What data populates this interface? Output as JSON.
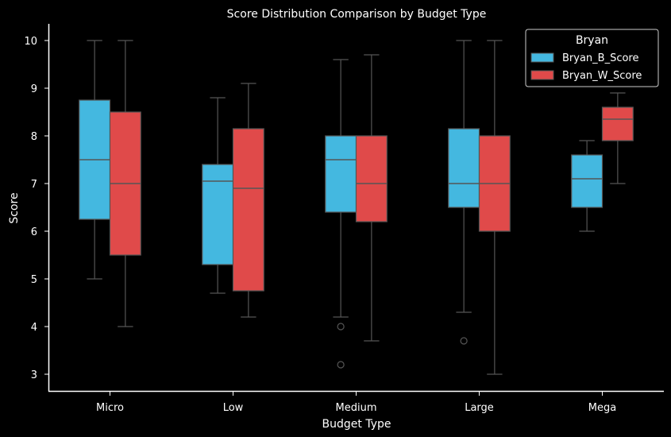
{
  "chart_data": {
    "type": "box",
    "title": "Score Distribution Comparison by Budget Type",
    "xlabel": "Budget Type",
    "ylabel": "Score",
    "ylim": [
      2.65,
      10.35
    ],
    "yticks": [
      "3",
      "4",
      "5",
      "6",
      "7",
      "8",
      "9",
      "10"
    ],
    "ytick_values": [
      3,
      4,
      5,
      6,
      7,
      8,
      9,
      10
    ],
    "categories": [
      "Micro",
      "Low",
      "Medium",
      "Large",
      "Mega"
    ],
    "grid": false,
    "legend": {
      "title": "Bryan",
      "position": "top-right",
      "entries": [
        "Bryan_B_Score",
        "Bryan_W_Score"
      ]
    },
    "series": [
      {
        "name": "Bryan_B_Score",
        "color": "#44b8e0",
        "boxes": [
          {
            "whislo": 5.0,
            "q1": 6.25,
            "med": 7.5,
            "q3": 8.75,
            "whishi": 10.0,
            "fliers": []
          },
          {
            "whislo": 4.7,
            "q1": 5.3,
            "med": 7.05,
            "q3": 7.4,
            "whishi": 8.8,
            "fliers": []
          },
          {
            "whislo": 4.2,
            "q1": 6.4,
            "med": 7.5,
            "q3": 8.0,
            "whishi": 9.6,
            "fliers": [
              4.0,
              3.2
            ]
          },
          {
            "whislo": 4.3,
            "q1": 6.5,
            "med": 7.0,
            "q3": 8.15,
            "whishi": 10.0,
            "fliers": [
              3.7
            ]
          },
          {
            "whislo": 6.0,
            "q1": 6.5,
            "med": 7.1,
            "q3": 7.6,
            "whishi": 7.9,
            "fliers": []
          }
        ]
      },
      {
        "name": "Bryan_W_Score",
        "color": "#e04a4a",
        "boxes": [
          {
            "whislo": 4.0,
            "q1": 5.5,
            "med": 7.0,
            "q3": 8.5,
            "whishi": 10.0,
            "fliers": []
          },
          {
            "whislo": 4.2,
            "q1": 4.75,
            "med": 6.9,
            "q3": 8.15,
            "whishi": 9.1,
            "fliers": []
          },
          {
            "whislo": 3.7,
            "q1": 6.2,
            "med": 7.0,
            "q3": 8.0,
            "whishi": 9.7,
            "fliers": []
          },
          {
            "whislo": 3.0,
            "q1": 6.0,
            "med": 7.0,
            "q3": 8.0,
            "whishi": 10.0,
            "fliers": []
          },
          {
            "whislo": 7.0,
            "q1": 7.9,
            "med": 8.35,
            "q3": 8.6,
            "whishi": 8.9,
            "fliers": []
          }
        ]
      }
    ]
  }
}
